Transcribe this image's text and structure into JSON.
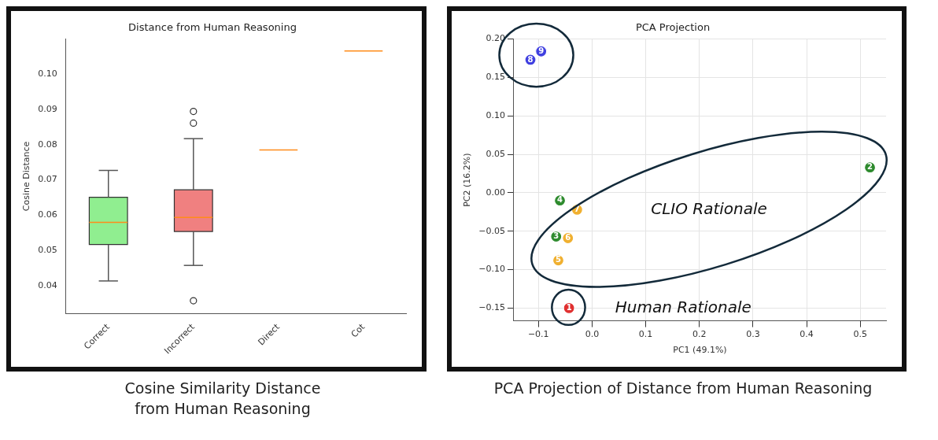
{
  "chart_data": [
    {
      "type": "box",
      "title": "Distance from Human Reasoning",
      "ylabel": "Cosine Distance",
      "categories": [
        "Correct",
        "Incorrect",
        "Direct",
        "Cot"
      ],
      "colors": [
        "#90ee90",
        "#f08080",
        null,
        null
      ],
      "boxes": [
        {
          "low": 0.0414,
          "q1": 0.0517,
          "median": 0.058,
          "q3": 0.0651,
          "high": 0.0727
        },
        {
          "low": 0.0458,
          "q1": 0.0554,
          "median": 0.0594,
          "q3": 0.0672,
          "high": 0.0817,
          "outliers": [
            0.0894,
            0.0861,
            0.0358
          ]
        },
        {
          "low": 0.0785,
          "q1": 0.0785,
          "median": 0.0785,
          "q3": 0.0785,
          "high": 0.0785
        },
        {
          "low": 0.1065,
          "q1": 0.1065,
          "median": 0.1065,
          "q3": 0.1065,
          "high": 0.1065
        }
      ],
      "ylim": [
        0.0322,
        0.1099
      ],
      "yticks": [
        {
          "value": 0.04,
          "label": "0.04"
        },
        {
          "value": 0.05,
          "label": "0.05"
        },
        {
          "value": 0.06,
          "label": "0.06"
        },
        {
          "value": 0.07,
          "label": "0.07"
        },
        {
          "value": 0.08,
          "label": "0.08"
        },
        {
          "value": 0.09,
          "label": "0.09"
        },
        {
          "value": 0.1,
          "label": "0.10"
        }
      ],
      "grid": false,
      "legend": false,
      "annotations": [
        "Cosine Similarity Distance\nfrom Human Reasoning"
      ]
    },
    {
      "type": "scatter",
      "title": "PCA Projection",
      "xlabel": "PC1 (49.1%)",
      "ylabel": "PC2 (16.2%)",
      "marker": "circle",
      "grid": true,
      "legend": false,
      "series": [
        {
          "color": "#e03030",
          "x": [
            -0.043
          ],
          "values": [
            -0.15
          ]
        },
        {
          "color": "#2e8b2e",
          "x": [
            0.518,
            -0.067,
            -0.06
          ],
          "values": [
            0.033,
            -0.057,
            -0.01
          ]
        },
        {
          "color": "#f0b030",
          "x": [
            -0.063,
            -0.045,
            -0.028
          ],
          "values": [
            -0.088,
            -0.059,
            -0.022
          ]
        },
        {
          "color": "#4040e0",
          "x": [
            -0.115,
            -0.095
          ],
          "values": [
            0.173,
            0.184
          ]
        }
      ],
      "xlim": [
        -0.146,
        0.548
      ],
      "xticks": [
        {
          "value": -0.1,
          "label": "−0.1"
        },
        {
          "value": 0,
          "label": "0.0"
        },
        {
          "value": 0.1,
          "label": "0.1"
        },
        {
          "value": 0.2,
          "label": "0.2"
        },
        {
          "value": 0.3,
          "label": "0.3"
        },
        {
          "value": 0.4,
          "label": "0.4"
        },
        {
          "value": 0.5,
          "label": "0.5"
        }
      ],
      "ylim": [
        -0.1666,
        0.2
      ],
      "yticks": [
        {
          "value": -0.15,
          "label": "−0.15"
        },
        {
          "value": -0.1,
          "label": "−0.10"
        },
        {
          "value": -0.05,
          "label": "−0.05"
        },
        {
          "value": 0,
          "label": "0.00"
        },
        {
          "value": 0.05,
          "label": "0.05"
        },
        {
          "value": 0.1,
          "label": "0.10"
        },
        {
          "value": 0.15,
          "label": "0.15"
        },
        {
          "value": 0.2,
          "label": "0.20"
        }
      ],
      "annotations": [
        {
          "text": "1",
          "x": -0.043,
          "y": -0.15
        },
        {
          "text": "2",
          "x": 0.518,
          "y": 0.033
        },
        {
          "text": "3",
          "x": -0.067,
          "y": -0.057
        },
        {
          "text": "4",
          "x": -0.06,
          "y": -0.01
        },
        {
          "text": "5",
          "x": -0.063,
          "y": -0.088
        },
        {
          "text": "6",
          "x": -0.045,
          "y": -0.059
        },
        {
          "text": "7",
          "x": -0.028,
          "y": -0.022
        },
        {
          "text": "8",
          "x": -0.115,
          "y": 0.173
        },
        {
          "text": "9",
          "x": -0.095,
          "y": 0.184
        },
        "CLIO Rationale",
        "Human Rationale",
        "PCA Projection of Distance from Human Reasoning"
      ]
    }
  ]
}
